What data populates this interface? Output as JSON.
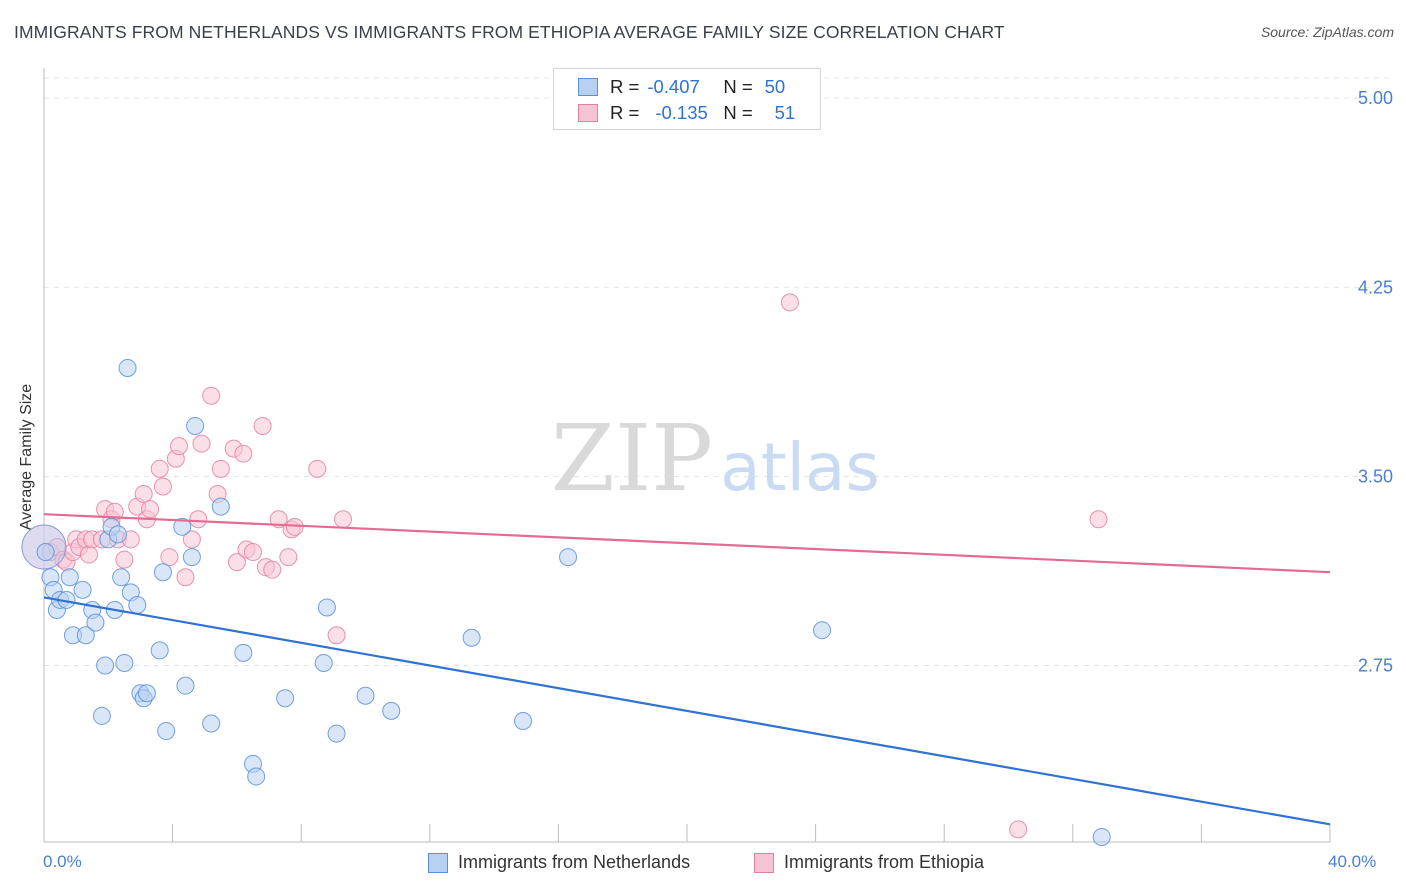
{
  "title": "IMMIGRANTS FROM NETHERLANDS VS IMMIGRANTS FROM ETHIOPIA AVERAGE FAMILY SIZE CORRELATION CHART",
  "source": "Source: ZipAtlas.com",
  "watermark": {
    "zip": "ZIP",
    "atlas": "atlas"
  },
  "colors": {
    "blue": "#5b8fd9",
    "blue_fill": "#b8d1f3",
    "blue_line": "#2f72d4",
    "pink": "#e77fa1",
    "pink_fill": "#f7c4d4",
    "pink_line": "#e56a93",
    "tick_text": "#4a7fd0",
    "grid": "#e3e3e3"
  },
  "stats": [
    {
      "r_label": "R =",
      "r_value": "-0.407",
      "n_label": "N =",
      "n_value": "50",
      "color": "blue"
    },
    {
      "r_label": "R =",
      "r_value": "-0.135",
      "n_label": "N =",
      "n_value": "51",
      "color": "pink"
    }
  ],
  "legend": [
    {
      "label": "Immigrants from Netherlands",
      "color": "blue"
    },
    {
      "label": "Immigrants from Ethiopia",
      "color": "pink"
    }
  ],
  "chart_data": {
    "type": "scatter",
    "title": "IMMIGRANTS FROM NETHERLANDS VS IMMIGRANTS FROM ETHIOPIA AVERAGE FAMILY SIZE CORRELATION CHART",
    "xlabel": "",
    "ylabel": "Average Family Size",
    "xlim": [
      0,
      40
    ],
    "ylim": [
      2.05,
      5.08
    ],
    "x_tick_labels": [
      "0.0%",
      "40.0%"
    ],
    "y_ticks": [
      {
        "value": 5.0,
        "label": "5.00"
      },
      {
        "value": 4.25,
        "label": "4.25"
      },
      {
        "value": 3.5,
        "label": "3.50"
      },
      {
        "value": 2.75,
        "label": "2.75"
      }
    ],
    "series": [
      {
        "name": "Immigrants from Netherlands",
        "color": "blue",
        "trend": {
          "x": [
            0,
            40
          ],
          "y": [
            3.02,
            2.12
          ]
        },
        "points": [
          [
            0.05,
            3.2
          ],
          [
            0.2,
            3.1
          ],
          [
            0.3,
            3.05
          ],
          [
            0.4,
            2.97
          ],
          [
            0.5,
            3.01
          ],
          [
            0.7,
            3.01
          ],
          [
            0.8,
            3.1
          ],
          [
            0.9,
            2.87
          ],
          [
            1.2,
            3.05
          ],
          [
            1.3,
            2.87
          ],
          [
            1.5,
            2.97
          ],
          [
            1.6,
            2.92
          ],
          [
            1.8,
            2.55
          ],
          [
            1.9,
            2.75
          ],
          [
            2.0,
            3.25
          ],
          [
            2.1,
            3.3
          ],
          [
            2.2,
            2.97
          ],
          [
            2.3,
            3.27
          ],
          [
            2.4,
            3.1
          ],
          [
            2.5,
            2.76
          ],
          [
            2.6,
            3.93
          ],
          [
            2.7,
            3.04
          ],
          [
            2.9,
            2.99
          ],
          [
            3.0,
            2.64
          ],
          [
            3.1,
            2.62
          ],
          [
            3.2,
            2.64
          ],
          [
            3.6,
            2.81
          ],
          [
            3.7,
            3.12
          ],
          [
            3.8,
            2.49
          ],
          [
            4.3,
            3.3
          ],
          [
            4.4,
            2.67
          ],
          [
            4.6,
            3.18
          ],
          [
            4.7,
            3.7
          ],
          [
            5.2,
            2.52
          ],
          [
            5.5,
            3.38
          ],
          [
            6.2,
            2.8
          ],
          [
            6.5,
            2.36
          ],
          [
            6.6,
            2.31
          ],
          [
            7.5,
            2.62
          ],
          [
            8.7,
            2.76
          ],
          [
            8.8,
            2.98
          ],
          [
            9.1,
            2.48
          ],
          [
            10.0,
            2.63
          ],
          [
            10.8,
            2.57
          ],
          [
            13.3,
            2.86
          ],
          [
            14.9,
            2.53
          ],
          [
            16.3,
            3.18
          ],
          [
            24.2,
            2.89
          ],
          [
            32.9,
            2.07
          ]
        ],
        "large_point": [
          0.0,
          3.22
        ]
      },
      {
        "name": "Immigrants from Ethiopia",
        "color": "pink",
        "trend": {
          "x": [
            0,
            40
          ],
          "y": [
            3.35,
            3.12
          ]
        },
        "points": [
          [
            0.2,
            3.2
          ],
          [
            0.4,
            3.22
          ],
          [
            0.6,
            3.17
          ],
          [
            0.7,
            3.16
          ],
          [
            0.9,
            3.2
          ],
          [
            1.0,
            3.25
          ],
          [
            1.1,
            3.22
          ],
          [
            1.3,
            3.25
          ],
          [
            1.4,
            3.19
          ],
          [
            1.5,
            3.25
          ],
          [
            1.8,
            3.25
          ],
          [
            1.9,
            3.37
          ],
          [
            2.1,
            3.33
          ],
          [
            2.2,
            3.36
          ],
          [
            2.3,
            3.25
          ],
          [
            2.5,
            3.17
          ],
          [
            2.7,
            3.25
          ],
          [
            2.9,
            3.38
          ],
          [
            3.1,
            3.43
          ],
          [
            3.2,
            3.33
          ],
          [
            3.3,
            3.37
          ],
          [
            3.6,
            3.53
          ],
          [
            3.7,
            3.46
          ],
          [
            3.9,
            3.18
          ],
          [
            4.1,
            3.57
          ],
          [
            4.2,
            3.62
          ],
          [
            4.4,
            3.1
          ],
          [
            4.6,
            3.25
          ],
          [
            4.8,
            3.33
          ],
          [
            4.9,
            3.63
          ],
          [
            5.2,
            3.82
          ],
          [
            5.4,
            3.43
          ],
          [
            5.5,
            3.53
          ],
          [
            5.9,
            3.61
          ],
          [
            6.0,
            3.16
          ],
          [
            6.2,
            3.59
          ],
          [
            6.3,
            3.21
          ],
          [
            6.5,
            3.2
          ],
          [
            6.8,
            3.7
          ],
          [
            6.9,
            3.14
          ],
          [
            7.1,
            3.13
          ],
          [
            7.3,
            3.33
          ],
          [
            7.6,
            3.18
          ],
          [
            7.7,
            3.29
          ],
          [
            7.8,
            3.3
          ],
          [
            8.5,
            3.53
          ],
          [
            9.1,
            2.87
          ],
          [
            9.3,
            3.33
          ],
          [
            23.2,
            4.19
          ],
          [
            30.3,
            2.1
          ],
          [
            32.8,
            3.33
          ]
        ],
        "large_point": [
          0.0,
          3.22
        ]
      }
    ]
  }
}
